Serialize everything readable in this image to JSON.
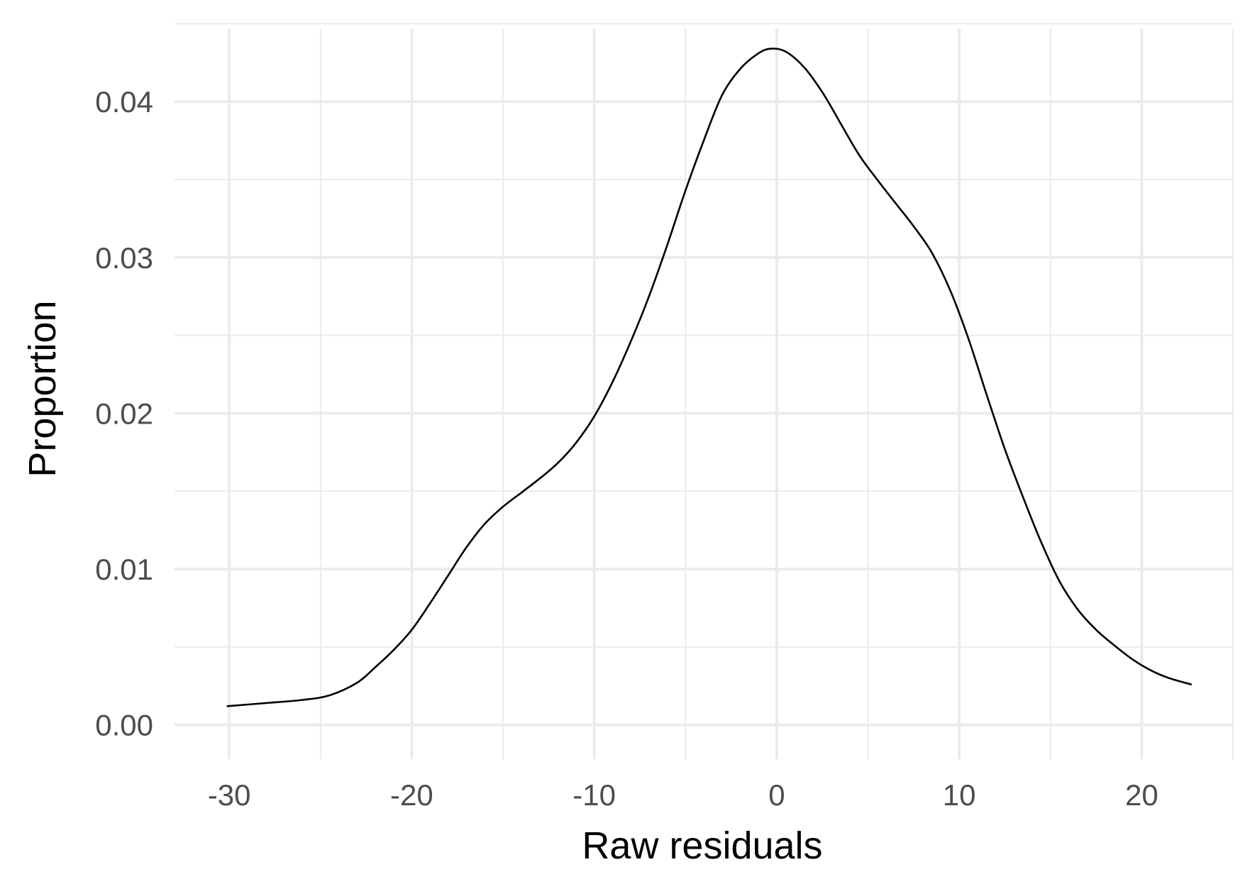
{
  "chart_data": {
    "type": "line",
    "title": "",
    "xlabel": "Raw residuals",
    "ylabel": "Proportion",
    "xlim": [
      -33,
      25
    ],
    "ylim": [
      -0.0022,
      0.0447
    ],
    "grid": true,
    "x_major_ticks": [
      -30,
      -20,
      -10,
      0,
      10,
      20
    ],
    "x_tick_labels": [
      "-30",
      "-20",
      "-10",
      "0",
      "10",
      "20"
    ],
    "x_minor_ticks": [
      -25,
      -15,
      -5,
      5,
      15,
      25
    ],
    "y_major_ticks": [
      0,
      0.01,
      0.02,
      0.03,
      0.04
    ],
    "y_tick_labels": [
      "0.00",
      "0.01",
      "0.02",
      "0.03",
      "0.04"
    ],
    "y_minor_ticks": [
      0.005,
      0.015,
      0.025,
      0.035,
      0.045
    ],
    "series": [
      {
        "x": [
          -30.1,
          -28,
          -26,
          -24.5,
          -23,
          -22,
          -21,
          -20,
          -19,
          -18,
          -17,
          -16,
          -15,
          -14,
          -13,
          -12,
          -11,
          -10,
          -9,
          -8,
          -7,
          -6,
          -5,
          -4,
          -3,
          -2,
          -1,
          -0.3,
          0.5,
          1.5,
          2.5,
          3.5,
          4.5,
          5.5,
          6.5,
          7.5,
          8.5,
          9.5,
          10.5,
          11.5,
          12.5,
          13.5,
          14.5,
          15.5,
          16.5,
          17.5,
          18.5,
          19.5,
          20.5,
          21.5,
          22.7
        ],
        "y": [
          0.0012,
          0.0014,
          0.0016,
          0.0019,
          0.0027,
          0.0037,
          0.0048,
          0.0061,
          0.0078,
          0.0096,
          0.0114,
          0.0129,
          0.014,
          0.0149,
          0.0158,
          0.0168,
          0.0181,
          0.0198,
          0.022,
          0.0246,
          0.0275,
          0.0308,
          0.0343,
          0.0375,
          0.0404,
          0.0421,
          0.0431,
          0.0434,
          0.0432,
          0.0422,
          0.0406,
          0.0386,
          0.0366,
          0.035,
          0.0335,
          0.032,
          0.0303,
          0.0279,
          0.0248,
          0.0212,
          0.0177,
          0.0146,
          0.0117,
          0.0092,
          0.0074,
          0.0061,
          0.0051,
          0.0042,
          0.0035,
          0.003,
          0.0026
        ]
      }
    ]
  }
}
